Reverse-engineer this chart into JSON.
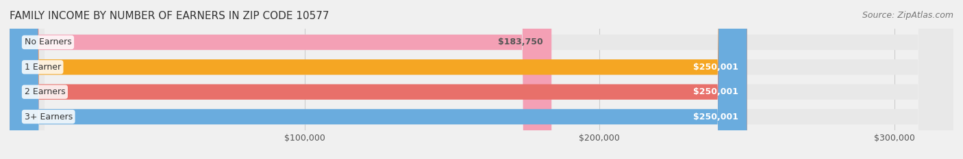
{
  "title": "FAMILY INCOME BY NUMBER OF EARNERS IN ZIP CODE 10577",
  "source": "Source: ZipAtlas.com",
  "categories": [
    "No Earners",
    "1 Earner",
    "2 Earners",
    "3+ Earners"
  ],
  "values": [
    183750,
    250001,
    250001,
    250001
  ],
  "bar_colors": [
    "#f4a0b5",
    "#f5a623",
    "#e8706a",
    "#6aacde"
  ],
  "label_colors": [
    "#555555",
    "#ffffff",
    "#ffffff",
    "#ffffff"
  ],
  "value_labels": [
    "$183,750",
    "$250,001",
    "$250,001",
    "$250,001"
  ],
  "xlim": [
    0,
    320000
  ],
  "xticks": [
    100000,
    200000,
    300000
  ],
  "xticklabels": [
    "$100,000",
    "$200,000",
    "$300,000"
  ],
  "background_color": "#f0f0f0",
  "bar_background": "#e8e8e8",
  "title_fontsize": 11,
  "source_fontsize": 9,
  "label_fontsize": 9,
  "value_fontsize": 9,
  "tick_fontsize": 9,
  "figsize": [
    14.06,
    2.33
  ],
  "dpi": 100
}
